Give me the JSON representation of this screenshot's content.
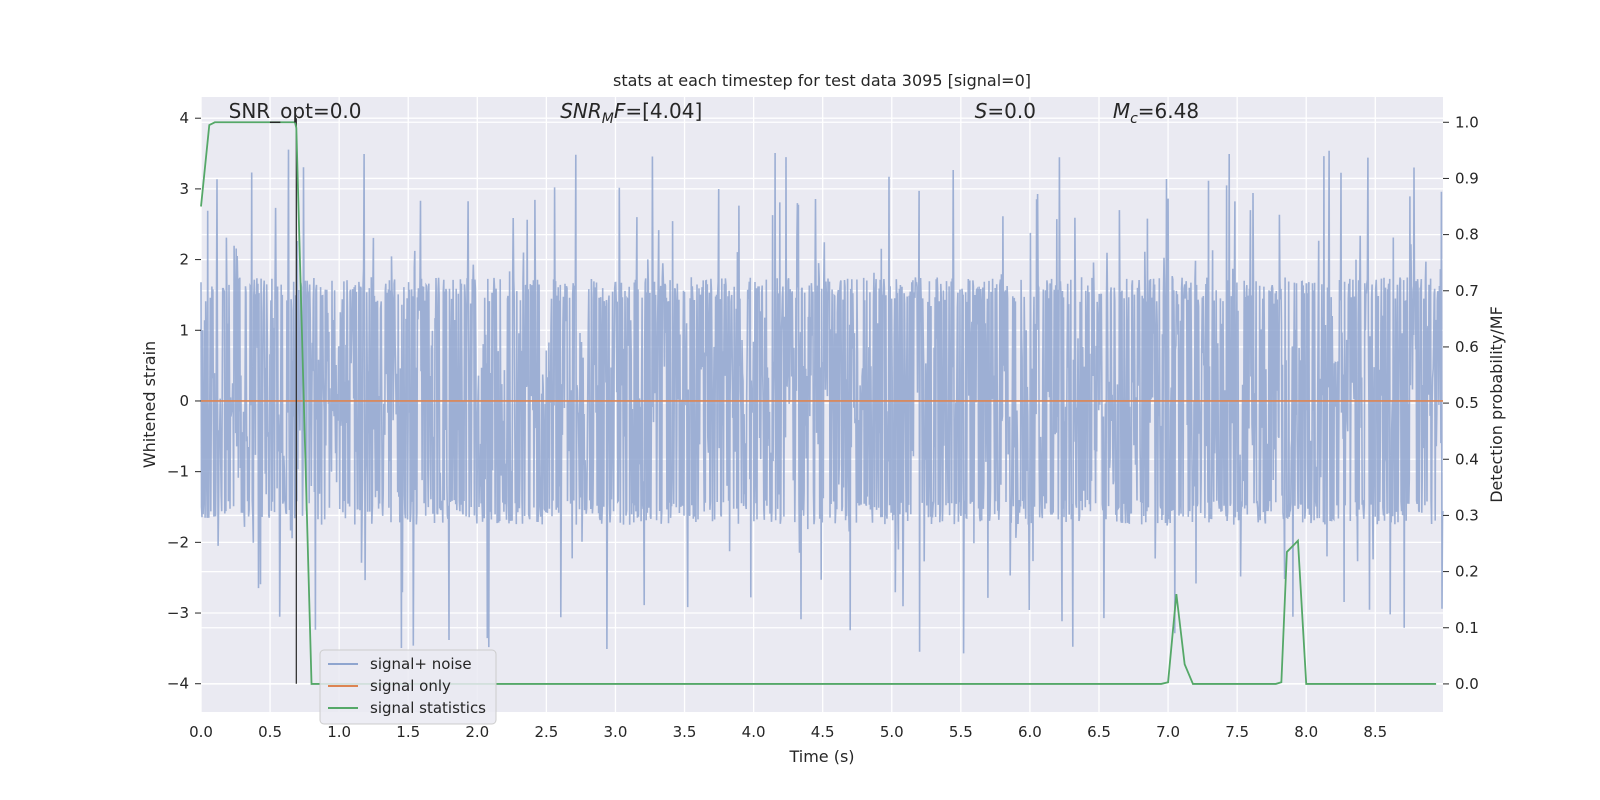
{
  "chart_data": {
    "type": "line",
    "title": "stats at each timestep for test data 3095 [signal=0]",
    "xlabel": "Time (s)",
    "ylabel": "Whitened strain",
    "y2label": "Detection probability/MF",
    "xlim": [
      0.0,
      8.99
    ],
    "ylim": [
      -4.4,
      4.3
    ],
    "y2lim": [
      -0.05,
      1.045
    ],
    "xticks": [
      0.0,
      0.5,
      1.0,
      1.5,
      2.0,
      2.5,
      3.0,
      3.5,
      4.0,
      4.5,
      5.0,
      5.5,
      6.0,
      6.5,
      7.0,
      7.5,
      8.0,
      8.5
    ],
    "xtick_labels": [
      "0.0",
      "0.5",
      "1.0",
      "1.5",
      "2.0",
      "2.5",
      "3.0",
      "3.5",
      "4.0",
      "4.5",
      "5.0",
      "5.5",
      "6.0",
      "6.5",
      "7.0",
      "7.5",
      "8.0",
      "8.5"
    ],
    "yticks": [
      4,
      3,
      2,
      1,
      0,
      -1,
      -2,
      -3,
      -4
    ],
    "ytick_labels": [
      "4",
      "3",
      "2",
      "1",
      "0",
      "−1",
      "−2",
      "−3",
      "−4"
    ],
    "y2ticks": [
      1.0,
      0.9,
      0.8,
      0.7,
      0.6,
      0.5,
      0.4,
      0.3,
      0.2,
      0.1,
      0.0
    ],
    "y2tick_labels": [
      "1.0",
      "0.9",
      "0.8",
      "0.7",
      "0.6",
      "0.5",
      "0.4",
      "0.3",
      "0.2",
      "0.1",
      "0.0"
    ],
    "grid": true,
    "legend_placement": "lower-left",
    "annotations": [
      {
        "x": 0.2,
        "y": 4.1,
        "parts": [
          {
            "t": "SNR_opt=0.0"
          }
        ]
      },
      {
        "x": 2.6,
        "y": 4.1,
        "parts": [
          {
            "t": "SNR",
            "i": true
          },
          {
            "t": "M",
            "i": true,
            "sub": true
          },
          {
            "t": "F",
            "i": true
          },
          {
            "t": "=[4.04]"
          }
        ]
      },
      {
        "x": 5.6,
        "y": 4.1,
        "parts": [
          {
            "t": "S",
            "i": true
          },
          {
            "t": "=0.0"
          }
        ]
      },
      {
        "x": 6.6,
        "y": 4.1,
        "parts": [
          {
            "t": "M",
            "i": true
          },
          {
            "t": "c",
            "i": true,
            "sub": true
          },
          {
            "t": "=6.48"
          }
        ]
      }
    ],
    "vline": {
      "x": 0.69,
      "y0": -4.0,
      "y1": 4.0
    },
    "series": [
      {
        "name": "signal+ noise",
        "color": "#8fa5cf",
        "axis": "left",
        "noise_description": "whitened noise, amplitude mostly within about ±2.7, rare peaks to about 3.9 and -3.9",
        "x_range": [
          0.0,
          8.99
        ],
        "typical_amplitude": 1.55,
        "peak_upper": 3.95,
        "peak_lower": -3.85
      },
      {
        "name": "signal only",
        "color": "#dd8452",
        "axis": "left",
        "x": [
          0.0,
          8.99
        ],
        "y": [
          0.0,
          0.0
        ]
      },
      {
        "name": "signal statistics",
        "color": "#55a868",
        "axis": "right",
        "x": [
          0.0,
          0.06,
          0.1,
          0.68,
          0.69,
          0.8,
          1.0,
          6.95,
          7.0,
          7.06,
          7.12,
          7.18,
          7.78,
          7.82,
          7.86,
          7.94,
          8.0,
          8.1,
          8.94
        ],
        "y": [
          0.85,
          0.995,
          1.0,
          1.0,
          0.99,
          0.0,
          0.0,
          0.0,
          0.003,
          0.16,
          0.035,
          0.0,
          0.0,
          0.003,
          0.235,
          0.255,
          0.0,
          0.0,
          0.0
        ]
      }
    ]
  }
}
